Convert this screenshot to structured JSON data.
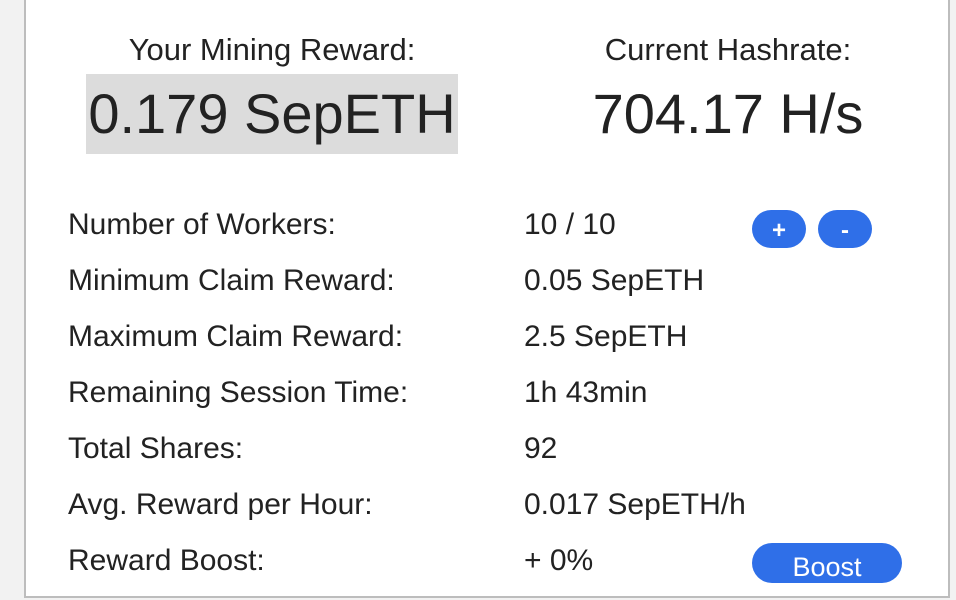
{
  "stats": {
    "reward_label": "Your Mining Reward:",
    "reward_value": "0.179 SepETH",
    "hashrate_label": "Current Hashrate:",
    "hashrate_value": "704.17 H/s"
  },
  "rows": [
    {
      "key": "Number of Workers:",
      "value": "10 / 10"
    },
    {
      "key": "Minimum Claim Reward:",
      "value": "0.05 SepETH"
    },
    {
      "key": "Maximum Claim Reward:",
      "value": "2.5 SepETH"
    },
    {
      "key": "Remaining Session Time:",
      "value": "1h 43min"
    },
    {
      "key": "Total Shares:",
      "value": "92"
    },
    {
      "key": "Avg. Reward per Hour:",
      "value": "0.017 SepETH/h"
    },
    {
      "key": "Reward Boost:",
      "value": "+ 0%"
    }
  ],
  "buttons": {
    "add_worker": "+",
    "remove_worker": "-",
    "boost": "Boost"
  },
  "colors": {
    "accent": "#2f6fe8",
    "highlight": "#dcdcdc"
  }
}
